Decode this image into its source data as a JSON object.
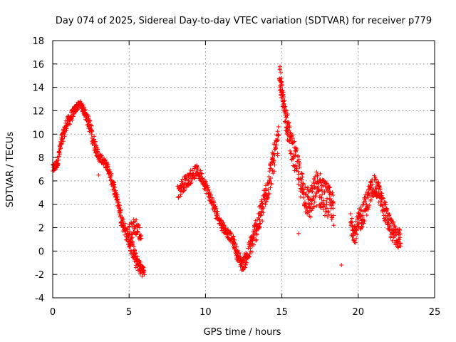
{
  "chart_data": {
    "type": "scatter",
    "title": "Day 074 of 2025, Sidereal Day-to-day VTEC variation (SDTVAR) for receiver p779",
    "xlabel": "GPS time / hours",
    "ylabel": "SDTVAR / TECUs",
    "xlim": [
      0,
      25
    ],
    "ylim": [
      -4,
      18
    ],
    "x_ticks": [
      0,
      5,
      10,
      15,
      20,
      25
    ],
    "y_ticks": [
      -4,
      -2,
      0,
      2,
      4,
      6,
      8,
      10,
      12,
      14,
      16,
      18
    ],
    "grid": true,
    "marker": "+",
    "marker_color": "#ff0000",
    "series": [
      {
        "name": "p779",
        "note": "dense trace approximated by segment envelopes; each point [x_hours, y_center, y_spread]",
        "segments": [
          [
            [
              0.0,
              7.0,
              0.8
            ],
            [
              0.3,
              7.5,
              0.8
            ],
            [
              0.6,
              9.5,
              1.2
            ],
            [
              0.9,
              10.8,
              1.0
            ],
            [
              1.2,
              11.5,
              0.9
            ],
            [
              1.5,
              12.2,
              0.7
            ],
            [
              1.8,
              12.6,
              0.5
            ],
            [
              2.1,
              11.9,
              0.8
            ],
            [
              2.4,
              10.8,
              1.2
            ],
            [
              2.7,
              9.3,
              1.2
            ],
            [
              3.0,
              8.1,
              0.8
            ],
            [
              3.3,
              7.7,
              0.6
            ],
            [
              3.6,
              7.1,
              0.8
            ],
            [
              3.9,
              5.9,
              1.0
            ],
            [
              4.2,
              4.6,
              1.0
            ],
            [
              4.5,
              2.8,
              1.2
            ],
            [
              4.8,
              1.6,
              1.2
            ],
            [
              5.1,
              0.6,
              1.3
            ],
            [
              5.4,
              -0.6,
              1.4
            ],
            [
              5.7,
              -1.4,
              1.2
            ],
            [
              6.0,
              -1.8,
              0.9
            ]
          ],
          [
            [
              5.0,
              1.5,
              1.6
            ],
            [
              5.4,
              2.2,
              1.6
            ],
            [
              5.8,
              1.2,
              1.4
            ]
          ],
          [
            [
              8.2,
              5.0,
              1.2
            ],
            [
              8.6,
              5.8,
              1.2
            ],
            [
              9.0,
              6.3,
              1.2
            ],
            [
              9.4,
              6.9,
              1.0
            ],
            [
              9.8,
              6.2,
              1.0
            ],
            [
              10.2,
              5.0,
              1.0
            ],
            [
              10.6,
              3.6,
              1.0
            ],
            [
              11.0,
              2.4,
              0.9
            ],
            [
              11.4,
              1.6,
              0.8
            ],
            [
              11.8,
              0.9,
              0.8
            ],
            [
              12.1,
              -0.3,
              1.0
            ],
            [
              12.4,
              -1.2,
              1.0
            ],
            [
              12.7,
              -0.6,
              1.4
            ],
            [
              13.0,
              0.6,
              1.8
            ],
            [
              13.3,
              1.8,
              2.0
            ],
            [
              13.6,
              3.0,
              2.2
            ],
            [
              13.9,
              4.6,
              2.4
            ],
            [
              14.2,
              6.2,
              2.4
            ],
            [
              14.5,
              8.0,
              2.4
            ],
            [
              14.8,
              9.6,
              2.4
            ]
          ],
          [
            [
              14.85,
              15.2,
              1.8
            ],
            [
              15.0,
              13.4,
              1.6
            ],
            [
              15.2,
              12.0,
              1.8
            ],
            [
              15.4,
              10.4,
              2.2
            ],
            [
              15.7,
              8.6,
              2.6
            ],
            [
              16.0,
              7.2,
              2.8
            ],
            [
              16.3,
              5.6,
              2.8
            ],
            [
              16.6,
              4.4,
              2.8
            ],
            [
              16.9,
              4.0,
              2.8
            ],
            [
              17.2,
              5.4,
              3.0
            ],
            [
              17.5,
              5.2,
              3.2
            ],
            [
              17.8,
              4.6,
              3.2
            ],
            [
              18.1,
              4.2,
              2.8
            ],
            [
              18.4,
              3.6,
              2.4
            ]
          ],
          [
            [
              19.5,
              2.4,
              2.0
            ],
            [
              19.8,
              1.6,
              2.0
            ],
            [
              20.1,
              2.6,
              2.2
            ],
            [
              20.4,
              3.6,
              2.2
            ],
            [
              20.7,
              4.6,
              2.2
            ],
            [
              21.0,
              5.6,
              1.8
            ],
            [
              21.3,
              5.2,
              1.8
            ],
            [
              21.6,
              4.0,
              1.8
            ],
            [
              21.9,
              2.8,
              1.8
            ],
            [
              22.2,
              1.8,
              1.8
            ],
            [
              22.5,
              1.2,
              1.8
            ],
            [
              22.8,
              1.0,
              1.6
            ]
          ]
        ]
      }
    ]
  }
}
